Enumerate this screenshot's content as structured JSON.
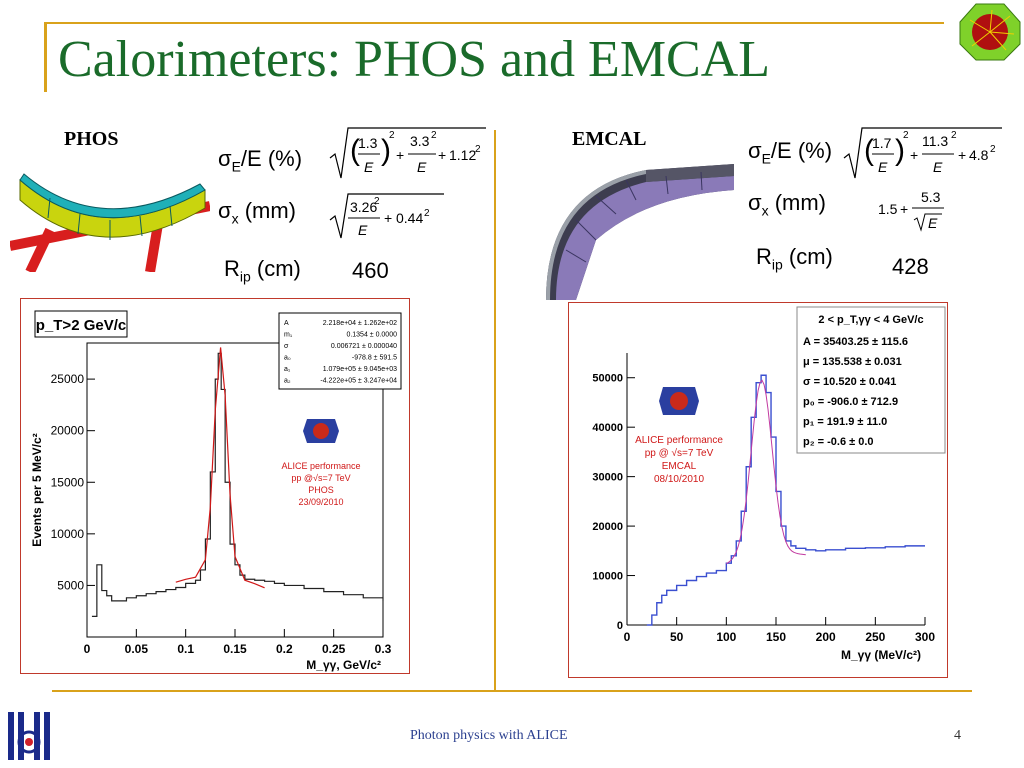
{
  "slide": {
    "title": "Calorimeters: PHOS and EMCAL",
    "footer": "Photon physics with ALICE",
    "page_number": "4"
  },
  "phos": {
    "label": "PHOS",
    "sigmaE_label": "/E (%)",
    "sigmaE_sub": "E",
    "sigmax_label": " (mm)",
    "sigmax_sub": "x",
    "rip_label": " (cm)",
    "rip_sub": "ip",
    "rip_R": "R",
    "rip_value": "460",
    "formula_E": {
      "a": "1.3",
      "b": "3.3",
      "c": "1.12",
      "den": "E"
    },
    "formula_x": {
      "a": "3.26",
      "c": "0.44",
      "den": "E"
    }
  },
  "emcal": {
    "label": "EMCAL",
    "sigmaE_label": "/E (%)",
    "sigmaE_sub": "E",
    "sigmax_label": " (mm)",
    "sigmax_sub": "x",
    "rip_label": " (cm)",
    "rip_sub": "ip",
    "rip_R": "R",
    "rip_value": "428",
    "formula_E": {
      "a": "1.7",
      "b": "11.3",
      "c": "4.8",
      "den": "E"
    },
    "formula_x": {
      "a": "1.5",
      "b": "5.3",
      "den": "E"
    }
  },
  "chart_data": [
    {
      "type": "line",
      "title": "p_T>2 GeV/c",
      "xlabel": "M_γγ, GeV/c²",
      "ylabel": "Events per 5 MeV/c²",
      "xlim": [
        0,
        0.3
      ],
      "ylim": [
        0,
        28500
      ],
      "xticks": [
        "0",
        "0.05",
        "0.1",
        "0.15",
        "0.2",
        "0.25",
        "0.3"
      ],
      "yticks": [
        "5000",
        "10000",
        "15000",
        "20000",
        "25000"
      ],
      "stats": [
        [
          "A",
          "2.218e+04 ± 1.262e+02"
        ],
        [
          "m₁",
          "0.1354 ± 0.0000"
        ],
        [
          "σ",
          "0.006721 ± 0.000040"
        ],
        [
          "a₀",
          "-978.8 ± 591.5"
        ],
        [
          "a₁",
          "1.079e+05 ± 9.045e+03"
        ],
        [
          "a₂",
          "-4.222e+05 ± 3.247e+04"
        ]
      ],
      "annotation": [
        "ALICE performance",
        "pp @√s=7 TeV",
        "PHOS",
        "23/09/2010"
      ],
      "series": [
        {
          "x": [
            0.005,
            0.01,
            0.015,
            0.02,
            0.025,
            0.03,
            0.04,
            0.05,
            0.06,
            0.07,
            0.08,
            0.09,
            0.1,
            0.11,
            0.115,
            0.12,
            0.125,
            0.13,
            0.133,
            0.136,
            0.14,
            0.145,
            0.15,
            0.155,
            0.16,
            0.17,
            0.18,
            0.19,
            0.2,
            0.22,
            0.24,
            0.26,
            0.28,
            0.3
          ],
          "y": [
            2000,
            7000,
            4500,
            4000,
            3500,
            3500,
            3800,
            4000,
            4200,
            4400,
            4600,
            4800,
            5200,
            5500,
            6500,
            9500,
            16000,
            25000,
            27500,
            24000,
            15000,
            9000,
            7000,
            6000,
            5600,
            5500,
            5400,
            5200,
            5000,
            4700,
            4400,
            4100,
            3800,
            3500
          ]
        }
      ]
    },
    {
      "type": "line",
      "xlabel": "M_γγ (MeV/c²)",
      "xlim": [
        0,
        300
      ],
      "ylim": [
        0,
        55000
      ],
      "xticks": [
        "0",
        "50",
        "100",
        "150",
        "200",
        "250",
        "300"
      ],
      "yticks": [
        "0",
        "10000",
        "20000",
        "30000",
        "40000",
        "50000"
      ],
      "stats_header": "2 < p_T,γγ < 4 GeV/c",
      "stats": [
        "A = 35403.25 ± 115.6",
        "μ = 135.538 ± 0.031",
        "σ = 10.520 ± 0.041",
        "p₀ = -906.0 ± 712.9",
        "p₁ = 191.9 ± 11.0",
        "p₂ = -0.6 ± 0.0"
      ],
      "annotation": [
        "ALICE performance",
        "pp @ √s=7 TeV",
        "EMCAL",
        "08/10/2010"
      ],
      "series": [
        {
          "x": [
            20,
            25,
            30,
            35,
            40,
            50,
            60,
            70,
            80,
            90,
            100,
            105,
            110,
            115,
            120,
            125,
            130,
            135,
            140,
            145,
            150,
            155,
            160,
            165,
            170,
            180,
            190,
            200,
            220,
            240,
            260,
            280,
            300
          ],
          "y": [
            0,
            2000,
            4500,
            6000,
            7000,
            8000,
            9000,
            9800,
            10500,
            11000,
            12500,
            14000,
            17000,
            23000,
            32000,
            42000,
            49000,
            50500,
            47000,
            38000,
            27000,
            20000,
            17000,
            16000,
            15500,
            15200,
            15000,
            15200,
            15500,
            15600,
            15800,
            16000,
            16000
          ]
        }
      ]
    }
  ]
}
